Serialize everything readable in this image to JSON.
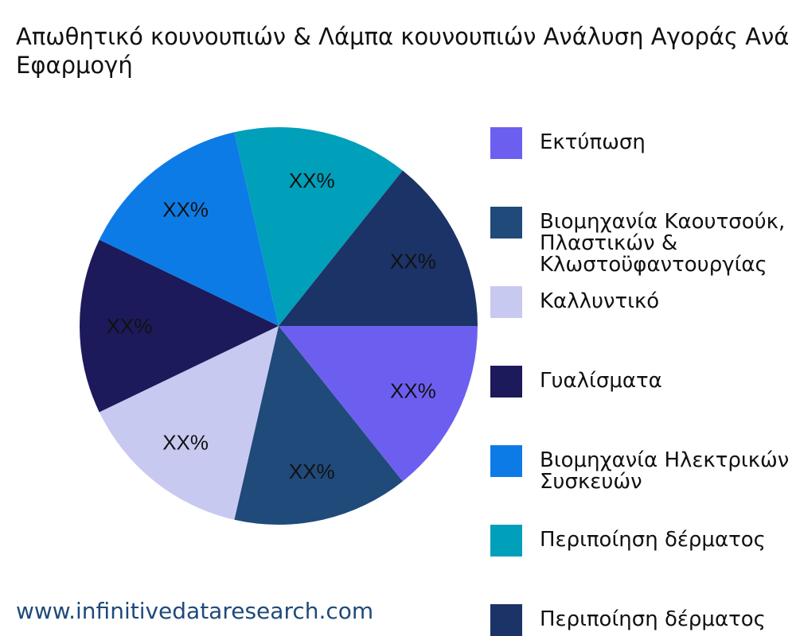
{
  "title": "Απωθητικό κουνουπιών & Λάμπα κουνουπιών Ανάλυση Αγοράς Ανά Εφαρμογή",
  "watermark": "www.infinitivedataresearch.com",
  "chart_data": {
    "type": "pie",
    "title": "Απωθητικό κουνουπιών & Λάμπα κουνουπιών Ανάλυση Αγοράς Ανά Εφαρμογή",
    "legend_position": "right",
    "slices": [
      {
        "name": "Εκτύπωση",
        "label": "XX%",
        "value": 1,
        "color": "#6c5ff0"
      },
      {
        "name": "Βιομηχανία Καουτσούκ,\nΠλαστικών &\nΚλωστοϋφαντουργίας",
        "label": "XX%",
        "value": 1,
        "color": "#1f4a7a"
      },
      {
        "name": "Καλλυντικό",
        "label": "XX%",
        "value": 1,
        "color": "#c8c9f0"
      },
      {
        "name": "Γυαλίσματα",
        "label": "XX%",
        "value": 1,
        "color": "#1c1a5a"
      },
      {
        "name": "Βιομηχανία Ηλεκτρικών\nΣυσκευών",
        "label": "XX%",
        "value": 1,
        "color": "#0d7be6"
      },
      {
        "name": "Περιποίηση δέρματος",
        "label": "XX%",
        "value": 1,
        "color": "#009fba"
      },
      {
        "name": "Περιποίηση δέρματος",
        "label": "XX%",
        "value": 1,
        "color": "#1b3366"
      }
    ]
  }
}
